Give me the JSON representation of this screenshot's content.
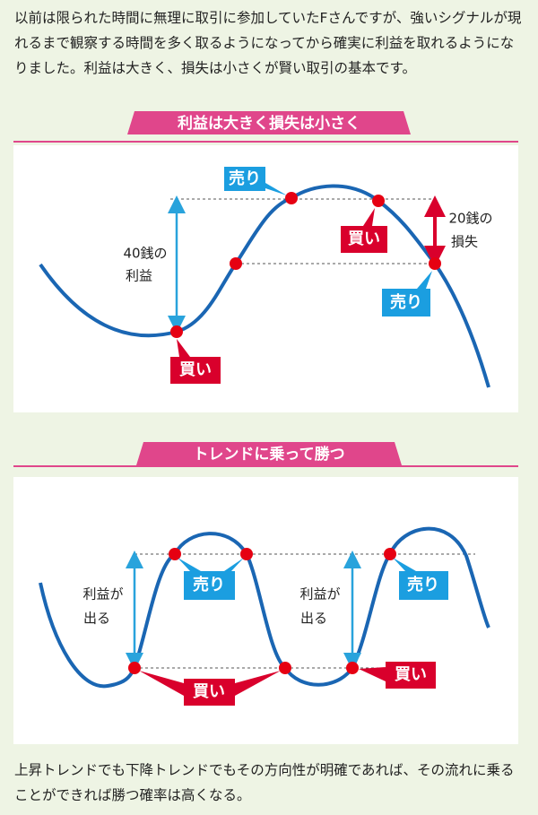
{
  "intro": "以前は限られた時間に無理に取引に参加していたFさんですが、強いシグナルが現れるまで観察する時間を多く取るようになってから確実に利益を取れるようになりました。利益は大きく、損失は小さくが賢い取引の基本です。",
  "sections": [
    {
      "heading": "利益は大きく損失は小さく",
      "labels": [
        "売り",
        "買い",
        "売り",
        "買い"
      ],
      "notes": [
        [
          "40銭の",
          "利益"
        ],
        [
          "20銭の",
          "損失"
        ]
      ]
    },
    {
      "heading": "トレンドに乗って勝つ",
      "labels": [
        "売り",
        "売り",
        "買い",
        "買い"
      ],
      "notes": [
        [
          "利益が",
          "出る"
        ],
        [
          "利益が",
          "出る"
        ]
      ]
    }
  ],
  "footer": "上昇トレンドでも下降トレンドでもその方向性が明確であれば、その流れに乗ることができれば勝つ確率は高くなる。"
}
